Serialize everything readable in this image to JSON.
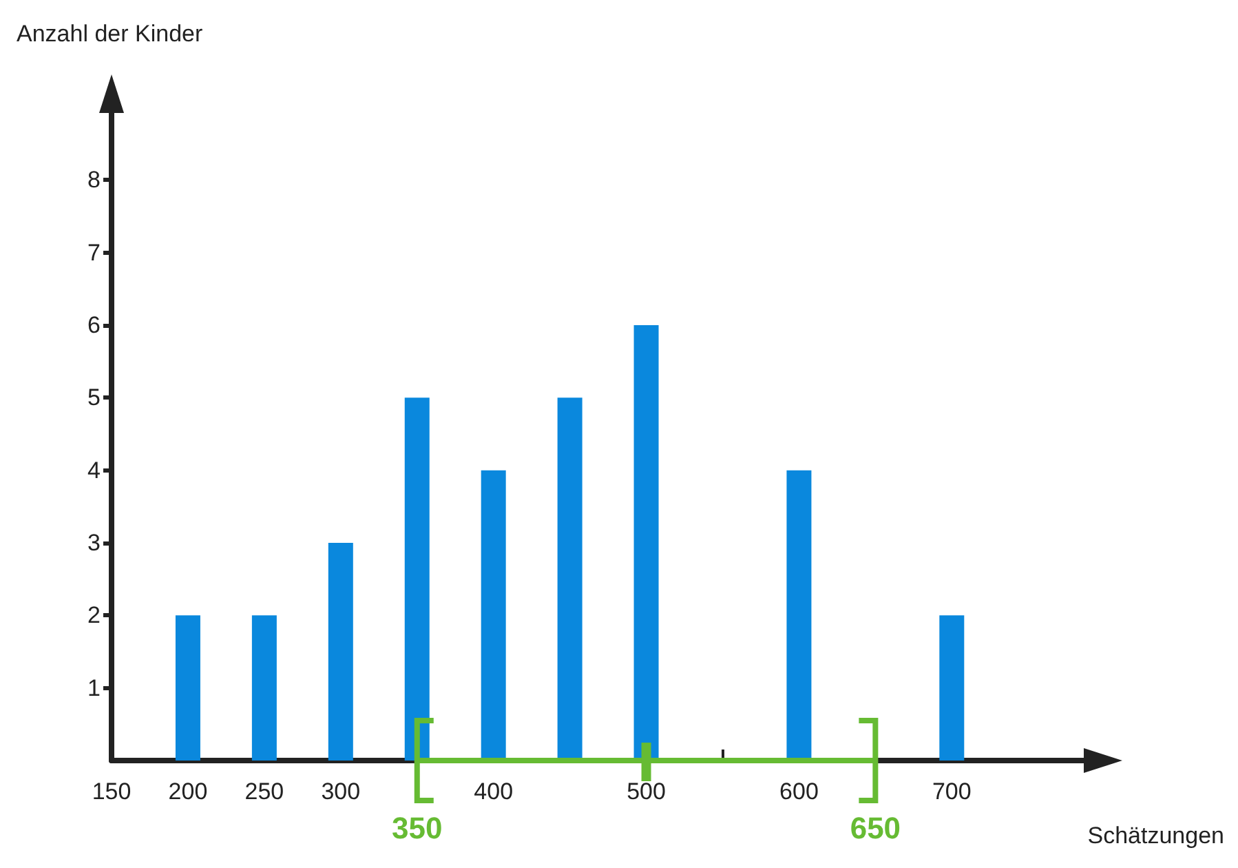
{
  "chart_data": {
    "type": "bar",
    "xlabel": "Schätzungen",
    "ylabel": "Anzahl der Kinder",
    "series": [
      {
        "x": [
          200,
          250,
          300,
          350,
          400,
          450,
          500,
          600,
          700
        ],
        "values": [
          2,
          2,
          3,
          5,
          4,
          5,
          6,
          4,
          2
        ],
        "color": "#0a88dd"
      },
      {
        "type": "line",
        "x": [
          350,
          500,
          650
        ],
        "values": [
          0,
          0,
          0
        ],
        "color": "#66bb33"
      }
    ],
    "xlim": [
      150,
      790
    ],
    "xticks": [
      150,
      200,
      250,
      300,
      {
        "value": 350,
        "label": null
      },
      400,
      {
        "value": 450,
        "label": null
      },
      500,
      {
        "value": 550,
        "label": null
      },
      600,
      {
        "value": 650,
        "label": null
      },
      700
    ],
    "ylim": [
      0,
      9
    ],
    "yticks": [
      1,
      2,
      3,
      4,
      5,
      6,
      7,
      8
    ],
    "annotations": [
      {
        "text": "350",
        "x": 350,
        "y": 0
      },
      {
        "text": "650",
        "x": 650,
        "y": 0
      }
    ],
    "grid": false
  }
}
